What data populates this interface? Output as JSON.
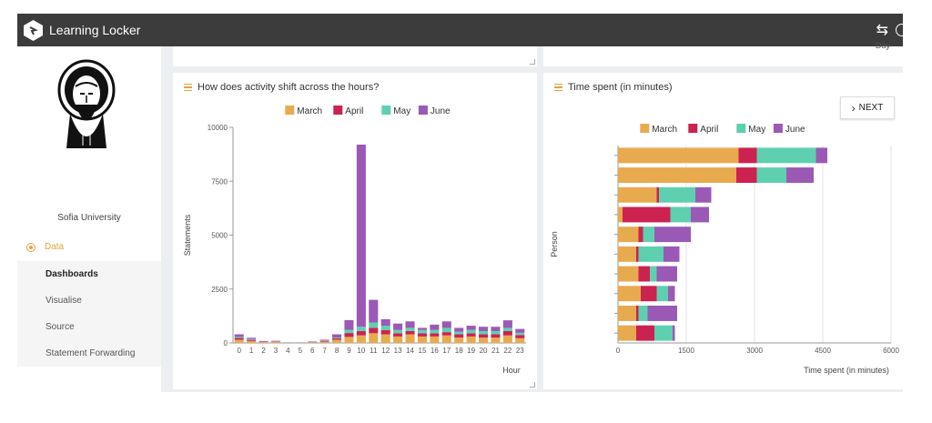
{
  "app": {
    "brand": "Learning Locker"
  },
  "sidebar": {
    "org_name": "Sofia University",
    "nav": {
      "section": "Data",
      "items": [
        {
          "label": "Dashboards",
          "active": true
        },
        {
          "label": "Visualise",
          "active": false
        },
        {
          "label": "Source",
          "active": false
        },
        {
          "label": "Statement Forwarding",
          "active": false
        }
      ]
    }
  },
  "top_card": {
    "partial_label": "Day"
  },
  "left_card": {
    "title": "How does activity shift across the hours?"
  },
  "right_card": {
    "title": "Time spent (in minutes)",
    "next_label": "NEXT"
  },
  "colors": {
    "March": "#e8aa4e",
    "April": "#cc2250",
    "May": "#5ed0b0",
    "June": "#9b59b6",
    "accent": "#e8a33d",
    "topbar": "#3c3c3c"
  },
  "chart_data": [
    {
      "type": "bar",
      "stacked": true,
      "orientation": "vertical",
      "title": "How does activity shift across the hours?",
      "xlabel": "Hour",
      "ylabel": "Statements",
      "ylim": [
        0,
        10000
      ],
      "yticks": [
        0,
        2500,
        5000,
        7500,
        10000
      ],
      "legend": "top",
      "categories": [
        "0",
        "1",
        "2",
        "3",
        "4",
        "5",
        "6",
        "7",
        "8",
        "9",
        "10",
        "11",
        "12",
        "13",
        "14",
        "15",
        "16",
        "17",
        "18",
        "19",
        "20",
        "21",
        "22",
        "23"
      ],
      "series": [
        {
          "name": "March",
          "values": [
            150,
            90,
            40,
            50,
            10,
            10,
            30,
            60,
            150,
            280,
            350,
            450,
            400,
            300,
            400,
            300,
            300,
            350,
            250,
            300,
            250,
            250,
            350,
            220
          ]
        },
        {
          "name": "April",
          "values": [
            80,
            50,
            20,
            20,
            5,
            5,
            10,
            30,
            60,
            180,
            200,
            250,
            200,
            150,
            150,
            150,
            150,
            150,
            150,
            150,
            150,
            150,
            200,
            150
          ]
        },
        {
          "name": "May",
          "values": [
            50,
            40,
            10,
            10,
            5,
            5,
            10,
            20,
            40,
            150,
            200,
            250,
            200,
            150,
            150,
            150,
            150,
            200,
            120,
            150,
            150,
            150,
            150,
            100
          ]
        },
        {
          "name": "June",
          "values": [
            120,
            60,
            20,
            20,
            5,
            5,
            20,
            40,
            150,
            450,
            8450,
            1050,
            300,
            300,
            300,
            100,
            250,
            300,
            180,
            200,
            200,
            200,
            350,
            180
          ]
        }
      ]
    },
    {
      "type": "bar",
      "stacked": true,
      "orientation": "horizontal",
      "title": "Time spent (in minutes)",
      "xlabel": "Time spent (in minutes)",
      "ylabel": "Person",
      "xlim": [
        0,
        6000
      ],
      "xticks": [
        0,
        1500,
        3000,
        4500,
        6000
      ],
      "legend": "top",
      "series": [
        {
          "name": "March",
          "values": [
            2650,
            2600,
            850,
            100,
            450,
            400,
            450,
            500,
            400,
            400
          ]
        },
        {
          "name": "April",
          "values": [
            400,
            450,
            50,
            1050,
            100,
            50,
            250,
            350,
            50,
            400
          ]
        },
        {
          "name": "May",
          "values": [
            1300,
            650,
            800,
            450,
            250,
            550,
            150,
            250,
            200,
            400
          ]
        },
        {
          "name": "June",
          "values": [
            250,
            600,
            350,
            400,
            800,
            350,
            450,
            150,
            650,
            50
          ]
        }
      ]
    }
  ]
}
